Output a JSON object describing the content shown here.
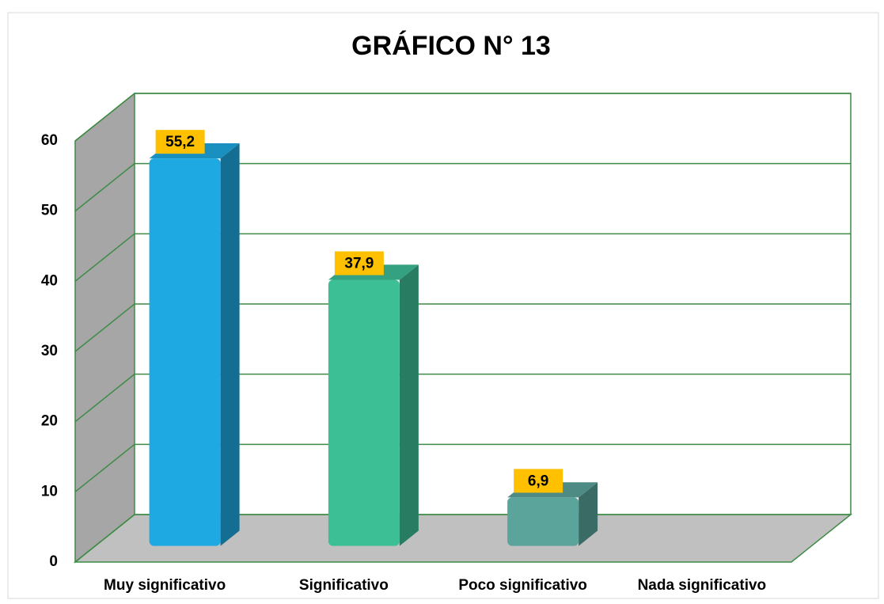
{
  "chart_data": {
    "type": "bar3d",
    "title": "GRÁFICO N° 13",
    "categories": [
      "Muy significativo",
      "Significativo",
      "Poco significativo",
      "Nada significativo"
    ],
    "values": [
      55.2,
      37.9,
      6.9,
      0
    ],
    "value_labels": [
      "55,2",
      "37,9",
      "6,9",
      null
    ],
    "colors": [
      "#1fa9e2",
      "#3dbf96",
      "#5ba49b",
      "#5ba49b"
    ],
    "ylim": [
      0,
      60
    ],
    "yticks": [
      0,
      10,
      20,
      30,
      40,
      50,
      60
    ],
    "grid": true
  }
}
